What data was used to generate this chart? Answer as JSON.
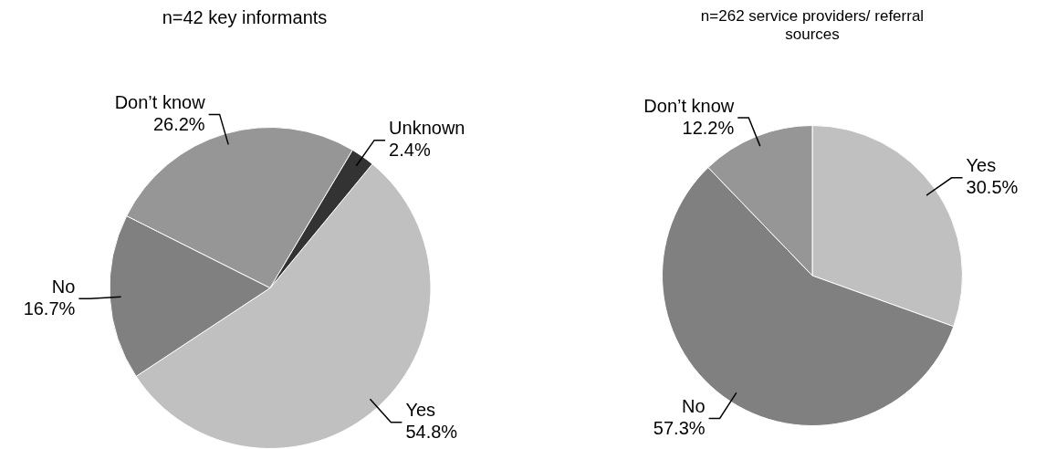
{
  "chart_data": [
    {
      "type": "pie",
      "title": "n=42 key informants",
      "categories": [
        "Yes",
        "No",
        "Don’t know",
        "Unknown"
      ],
      "values": [
        54.8,
        16.7,
        26.2,
        2.4
      ],
      "colors": [
        "#c0c0c0",
        "#808080",
        "#969696",
        "#333333"
      ],
      "value_labels": [
        "54.8%",
        "16.7%",
        "26.2%",
        "2.4%"
      ],
      "legend": false
    },
    {
      "type": "pie",
      "title": "n=262 service providers/ referral sources",
      "categories": [
        "Yes",
        "No",
        "Don’t know"
      ],
      "values": [
        30.5,
        57.3,
        12.2
      ],
      "colors": [
        "#c0c0c0",
        "#808080",
        "#969696"
      ],
      "value_labels": [
        "30.5%",
        "57.3%",
        "12.2%"
      ],
      "legend": false
    }
  ]
}
